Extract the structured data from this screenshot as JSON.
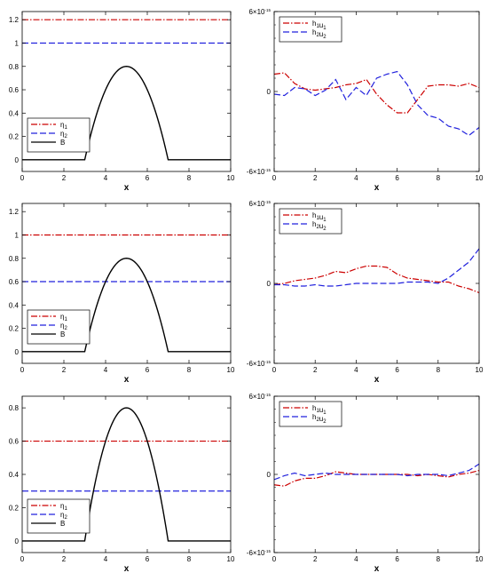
{
  "colors": {
    "eta1": "#cc0000",
    "eta2": "#2222dd",
    "bottom": "#000000",
    "hu1": "#cc0000",
    "hu2": "#2222dd"
  },
  "chart_data": [
    {
      "type": "line",
      "panel": "row1-left",
      "xlabel": "x",
      "xlim": [
        0,
        10
      ],
      "ylim": [
        -0.1,
        1.27
      ],
      "xticks": [
        0,
        2,
        4,
        6,
        8,
        10
      ],
      "yticks": [
        0,
        0.2,
        0.4,
        0.6,
        0.8,
        1,
        1.2
      ],
      "ytick_labels": [
        "0",
        "0.2",
        "0.4",
        "0.6",
        "0.8",
        "1",
        "1.2"
      ],
      "legend": "bottom-left",
      "series": [
        {
          "name": "η1",
          "key": "eta1",
          "style": "dashdot",
          "color": "#cc0000",
          "constant": 1.2
        },
        {
          "name": "η2",
          "key": "eta2",
          "style": "dash",
          "color": "#2222dd",
          "constant": 1.0
        },
        {
          "name": "B",
          "key": "bottom",
          "style": "solid",
          "color": "#000000",
          "bump": {
            "center": 5,
            "half_width": 2,
            "height": 0.8
          }
        }
      ]
    },
    {
      "type": "line",
      "panel": "row1-right",
      "xlabel": "x",
      "xlim": [
        0,
        10
      ],
      "ylim": [
        -6e-15,
        6e-15
      ],
      "xticks": [
        0,
        2,
        4,
        6,
        8,
        10
      ],
      "yticks": [
        -6e-15,
        0,
        6e-15
      ],
      "ytick_labels": [
        "-6×10",
        "0",
        "6×10"
      ],
      "ytick_exponent": "-15",
      "legend": "top-left",
      "series": [
        {
          "name": "h1u1",
          "key": "hu1",
          "style": "dashdot",
          "color": "#cc0000",
          "x": [
            0,
            0.5,
            1,
            1.5,
            2,
            2.5,
            3,
            3.5,
            4,
            4.5,
            5,
            5.5,
            6,
            6.5,
            7,
            7.5,
            8,
            8.5,
            9,
            9.5,
            10
          ],
          "values": [
            1.3e-15,
            1.4e-15,
            6e-16,
            2e-16,
            1e-16,
            2e-16,
            3e-16,
            5e-16,
            6e-16,
            9e-16,
            -2e-16,
            -1e-15,
            -1.6e-15,
            -1.6e-15,
            -6e-16,
            4e-16,
            5e-16,
            5e-16,
            4e-16,
            6e-16,
            3e-16
          ]
        },
        {
          "name": "h2u2",
          "key": "hu2",
          "style": "dash",
          "color": "#2222dd",
          "x": [
            0,
            0.5,
            1,
            1.5,
            2,
            2.5,
            3,
            3.5,
            4,
            4.5,
            5,
            5.5,
            6,
            6.5,
            7,
            7.5,
            8,
            8.5,
            9,
            9.5,
            10
          ],
          "values": [
            -2e-16,
            -3e-16,
            3e-16,
            2e-16,
            -3e-16,
            1e-16,
            9e-16,
            -6e-16,
            3e-16,
            -3e-16,
            1e-15,
            1.3e-15,
            1.5e-15,
            5e-16,
            -1e-15,
            -1.8e-15,
            -2e-15,
            -2.6e-15,
            -2.8e-15,
            -3.3e-15,
            -2.7e-15
          ]
        }
      ]
    },
    {
      "type": "line",
      "panel": "row2-left",
      "xlabel": "x",
      "xlim": [
        0,
        10
      ],
      "ylim": [
        -0.1,
        1.27
      ],
      "xticks": [
        0,
        2,
        4,
        6,
        8,
        10
      ],
      "yticks": [
        0,
        0.2,
        0.4,
        0.6,
        0.8,
        1,
        1.2
      ],
      "ytick_labels": [
        "0",
        "0.2",
        "0.4",
        "0.6",
        "0.8",
        "1",
        "1.2"
      ],
      "legend": "bottom-left",
      "series": [
        {
          "name": "η1",
          "key": "eta1",
          "style": "dashdot",
          "color": "#cc0000",
          "constant": 1.0
        },
        {
          "name": "η2",
          "key": "eta2",
          "style": "dash",
          "color": "#2222dd",
          "constant": 0.6
        },
        {
          "name": "B",
          "key": "bottom",
          "style": "solid",
          "color": "#000000",
          "bump": {
            "center": 5,
            "half_width": 2,
            "height": 0.8
          }
        }
      ]
    },
    {
      "type": "line",
      "panel": "row2-right",
      "xlabel": "x",
      "xlim": [
        0,
        10
      ],
      "ylim": [
        -6e-15,
        6e-15
      ],
      "xticks": [
        0,
        2,
        4,
        6,
        8,
        10
      ],
      "yticks": [
        -6e-15,
        0,
        6e-15
      ],
      "ytick_labels": [
        "-6×10",
        "0",
        "6×10"
      ],
      "ytick_exponent": "-15",
      "legend": "top-left",
      "series": [
        {
          "name": "h1u1",
          "key": "hu1",
          "style": "dashdot",
          "color": "#cc0000",
          "x": [
            0,
            0.5,
            1,
            1.5,
            2,
            2.5,
            3,
            3.5,
            4,
            4.5,
            5,
            5.5,
            6,
            6.5,
            7,
            7.5,
            8,
            8.5,
            9,
            9.5,
            10
          ],
          "values": [
            -1e-16,
            0,
            2e-16,
            3e-16,
            4e-16,
            6e-16,
            9e-16,
            8e-16,
            1.1e-15,
            1.3e-15,
            1.3e-15,
            1.2e-15,
            7e-16,
            4e-16,
            3e-16,
            2e-16,
            1e-16,
            1e-16,
            -2e-16,
            -4e-16,
            -7e-16
          ]
        },
        {
          "name": "h2u2",
          "key": "hu2",
          "style": "dash",
          "color": "#2222dd",
          "x": [
            0,
            0.5,
            1,
            1.5,
            2,
            2.5,
            3,
            3.5,
            4,
            4.5,
            5,
            5.5,
            6,
            6.5,
            7,
            7.5,
            8,
            8.5,
            9,
            9.5,
            10
          ],
          "values": [
            -1e-16,
            -1e-16,
            -2e-16,
            -2e-16,
            -1e-16,
            -2e-16,
            -2e-16,
            -1e-16,
            0,
            0,
            0,
            0,
            0,
            1e-16,
            1e-16,
            1e-16,
            0,
            4e-16,
            1e-15,
            1.6e-15,
            2.6e-15
          ]
        }
      ]
    },
    {
      "type": "line",
      "panel": "row3-left",
      "xlabel": "x",
      "xlim": [
        0,
        10
      ],
      "ylim": [
        -0.07,
        0.87
      ],
      "xticks": [
        0,
        2,
        4,
        6,
        8,
        10
      ],
      "yticks": [
        0,
        0.2,
        0.4,
        0.6,
        0.8
      ],
      "ytick_labels": [
        "0",
        "0.2",
        "0.4",
        "0.6",
        "0.8"
      ],
      "legend": "bottom-left",
      "series": [
        {
          "name": "η1",
          "key": "eta1",
          "style": "dashdot",
          "color": "#cc0000",
          "constant": 0.6
        },
        {
          "name": "η2",
          "key": "eta2",
          "style": "dash",
          "color": "#2222dd",
          "constant": 0.3
        },
        {
          "name": "B",
          "key": "bottom",
          "style": "solid",
          "color": "#000000",
          "bump": {
            "center": 5,
            "half_width": 2,
            "height": 0.8
          }
        }
      ]
    },
    {
      "type": "line",
      "panel": "row3-right",
      "xlabel": "x",
      "xlim": [
        0,
        10
      ],
      "ylim": [
        -6e-15,
        6e-15
      ],
      "xticks": [
        0,
        2,
        4,
        6,
        8,
        10
      ],
      "yticks": [
        -6e-15,
        0,
        6e-15
      ],
      "ytick_labels": [
        "-6×10",
        "0",
        "6×10"
      ],
      "ytick_exponent": "-15",
      "legend": "top-left",
      "series": [
        {
          "name": "h1u1",
          "key": "hu1",
          "style": "dashdot",
          "color": "#cc0000",
          "x": [
            0,
            0.5,
            1,
            1.5,
            2,
            2.5,
            3,
            3.5,
            4,
            4.5,
            5,
            5.5,
            6,
            6.5,
            7,
            7.5,
            8,
            8.5,
            9,
            9.5,
            10
          ],
          "values": [
            -8e-16,
            -9e-16,
            -5e-16,
            -3e-16,
            -3e-16,
            -1e-16,
            2e-16,
            1e-16,
            0,
            0,
            0,
            0,
            0,
            0,
            -1e-16,
            0,
            -1e-16,
            -2e-16,
            0,
            1e-16,
            3e-16
          ]
        },
        {
          "name": "h2u2",
          "key": "hu2",
          "style": "dash",
          "color": "#2222dd",
          "x": [
            0,
            0.5,
            1,
            1.5,
            2,
            2.5,
            3,
            3.5,
            4,
            4.5,
            5,
            5.5,
            6,
            6.5,
            7,
            7.5,
            8,
            8.5,
            9,
            9.5,
            10
          ],
          "values": [
            -4e-16,
            -1e-16,
            1e-16,
            -1e-16,
            0,
            1e-16,
            0,
            0,
            0,
            0,
            0,
            0,
            0,
            -1e-16,
            0,
            0,
            0,
            -1e-16,
            1e-16,
            3e-16,
            8e-16
          ]
        }
      ]
    }
  ]
}
